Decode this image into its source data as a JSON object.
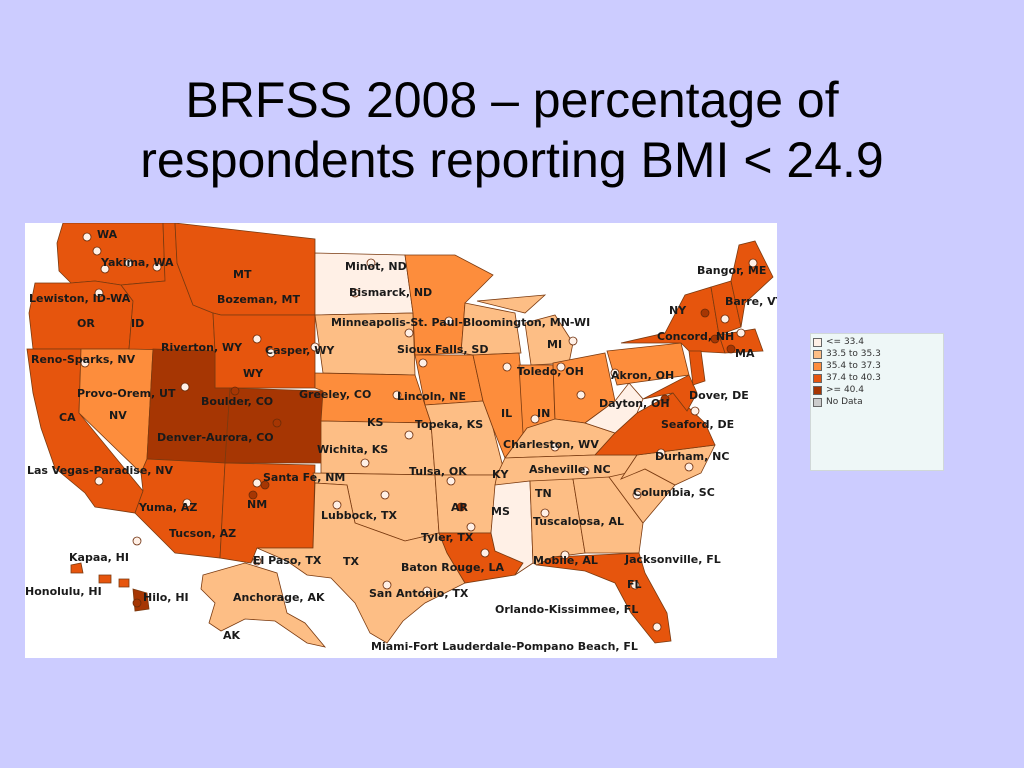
{
  "slide": {
    "title_line1": "BRFSS 2008 – percentage of",
    "title_line2": "respondents reporting BMI < 24.9"
  },
  "colors": {
    "background": "#ccccff",
    "class_1": "#fff0e6",
    "class_2": "#fdbe85",
    "class_3": "#fd8d3c",
    "class_4": "#e6550d",
    "class_5": "#a63603",
    "no_data": "#cccccc"
  },
  "legend": {
    "items": [
      {
        "label": "<= 33.4",
        "color": "#fff0e6"
      },
      {
        "label": "33.5 to 35.3",
        "color": "#fdbe85"
      },
      {
        "label": "35.4 to 37.3",
        "color": "#fd8d3c"
      },
      {
        "label": "37.4 to 40.3",
        "color": "#e6550d"
      },
      {
        "label": ">= 40.4",
        "color": "#a63603"
      },
      {
        "label": "No Data",
        "color": "#cccccc"
      }
    ]
  },
  "map": {
    "labels": [
      "WA",
      "Yakima, WA",
      "MT",
      "Minot, ND",
      "Bangor, ME",
      "Bismarck, ND",
      "Barre, VT",
      "Lewiston, ID-WA",
      "Bozeman, MT",
      "Minneapolis-St. Paul-Bloomington, MN-WI",
      "OR",
      "ID",
      "NY",
      "MI",
      "Concord, NH",
      "Riverton, WY",
      "Casper, WY",
      "Sioux Falls, SD",
      "MA",
      "Reno-Sparks, NV",
      "WY",
      "Toledo, OH",
      "Akron, OH",
      "Provo-Orem, UT",
      "Greeley, CO",
      "Lincoln, NE",
      "Dover, DE",
      "NV",
      "Boulder, CO",
      "IL",
      "IN",
      "Dayton, OH",
      "CA",
      "KS",
      "Topeka, KS",
      "Seaford, DE",
      "Denver-Aurora, CO",
      "Charleston, WV",
      "Wichita, KS",
      "Durham, NC",
      "Las Vegas-Paradise, NV",
      "Asheville, NC",
      "Tulsa, OK",
      "Santa Fe, NM",
      "KY",
      "TN",
      "Columbia, SC",
      "Yuma, AZ",
      "NM",
      "AR",
      "MS",
      "Lubbock, TX",
      "Tuscaloosa, AL",
      "Tucson, AZ",
      "Tyler, TX",
      "Kapaa, HI",
      "El Paso, TX",
      "TX",
      "Baton Rouge, LA",
      "Mobile, AL",
      "Jacksonville, FL",
      "FL",
      "Honolulu, HI",
      "Hilo, HI",
      "Anchorage, AK",
      "San Antonio, TX",
      "Orlando-Kissimmee, FL",
      "AK",
      "Miami-Fort Lauderdale-Pompano Beach, FL"
    ]
  }
}
